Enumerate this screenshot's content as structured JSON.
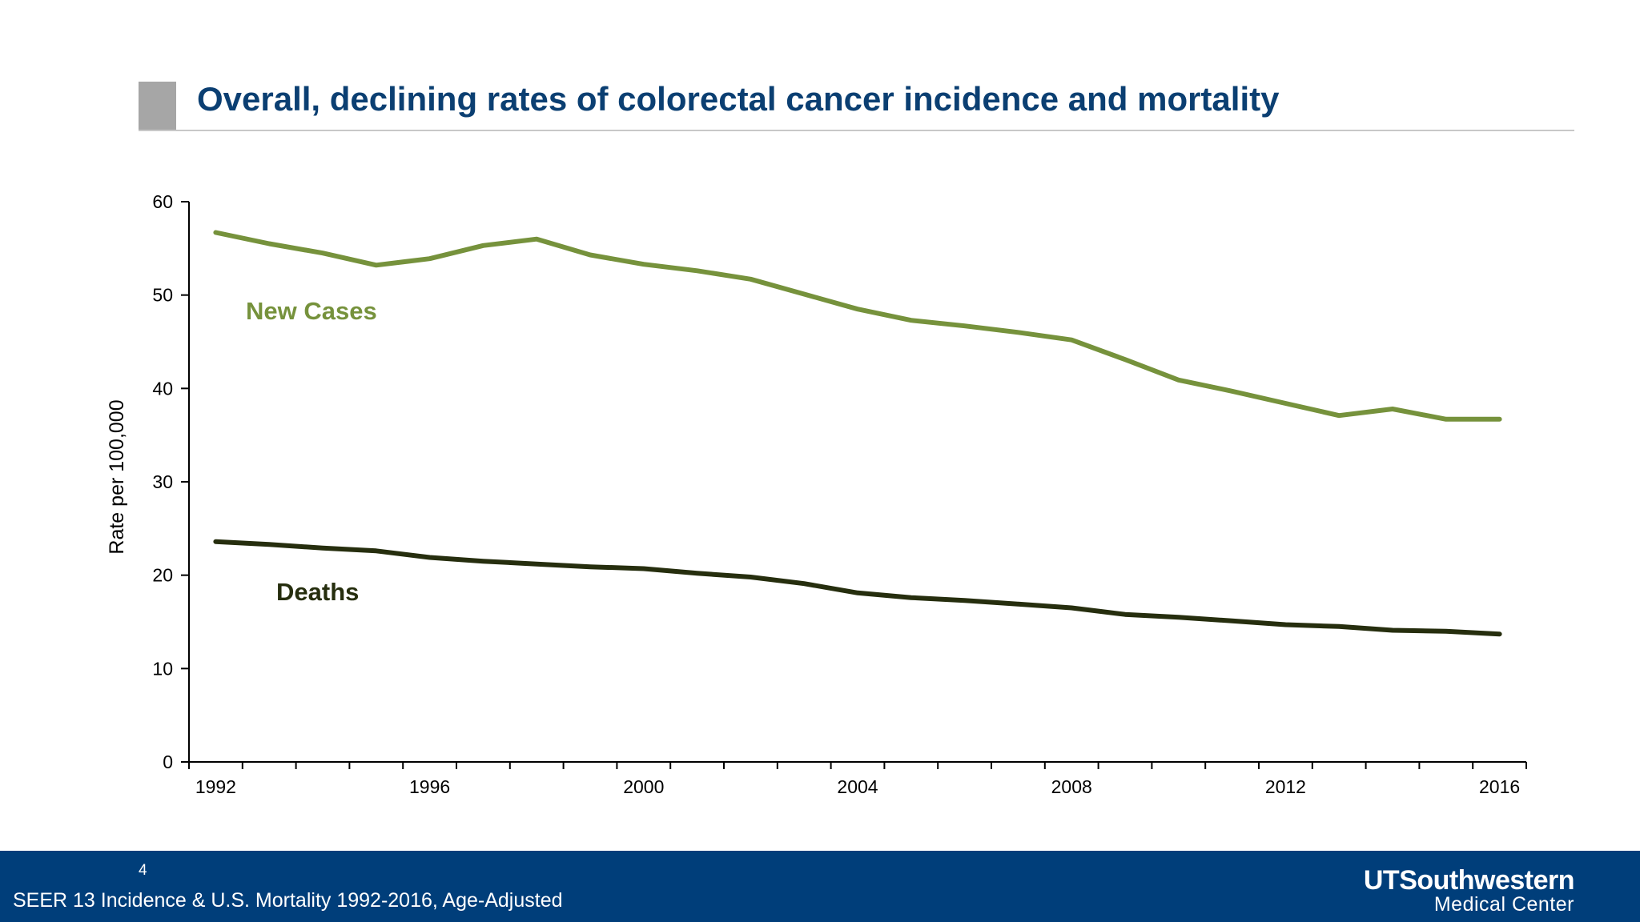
{
  "slide": {
    "title": "Overall, declining rates of colorectal cancer incidence and mortality",
    "number": "4",
    "source": "SEER 13 Incidence & U.S. Mortality 1992-2016, Age-Adjusted",
    "logo": {
      "line1": "UTSouthwestern",
      "line2": "Medical Center"
    },
    "colors": {
      "title": "#0b3f72",
      "footer": "#003e7a",
      "accent_block": "#a6a6a6"
    }
  },
  "chart_data": {
    "type": "line",
    "title": "",
    "xlabel": "",
    "ylabel": "Rate per 100,000",
    "x": [
      1992,
      1993,
      1994,
      1995,
      1996,
      1997,
      1998,
      1999,
      2000,
      2001,
      2002,
      2003,
      2004,
      2005,
      2006,
      2007,
      2008,
      2009,
      2010,
      2011,
      2012,
      2013,
      2014,
      2015,
      2016
    ],
    "xlim": [
      1991.5,
      2016.5
    ],
    "ylim": [
      0,
      60
    ],
    "yticks": [
      0,
      10,
      20,
      30,
      40,
      50,
      60
    ],
    "xtick_labels": [
      "1992",
      "1996",
      "2000",
      "2004",
      "2008",
      "2012",
      "2016"
    ],
    "grid": false,
    "legend": "none",
    "series": [
      {
        "name": "New Cases",
        "color": "#76923c",
        "values": [
          56.7,
          55.5,
          54.5,
          53.2,
          53.9,
          55.3,
          56.0,
          54.3,
          53.3,
          52.6,
          51.7,
          50.1,
          48.5,
          47.3,
          46.7,
          46.0,
          45.2,
          43.1,
          40.9,
          39.7,
          38.4,
          37.1,
          37.8,
          36.7,
          36.7
        ]
      },
      {
        "name": "Deaths",
        "color": "#262e0e",
        "values": [
          23.6,
          23.3,
          22.9,
          22.6,
          21.9,
          21.5,
          21.2,
          20.9,
          20.7,
          20.2,
          19.8,
          19.1,
          18.1,
          17.6,
          17.3,
          16.9,
          16.5,
          15.8,
          15.5,
          15.1,
          14.7,
          14.5,
          14.1,
          14.0,
          13.7
        ]
      }
    ]
  }
}
